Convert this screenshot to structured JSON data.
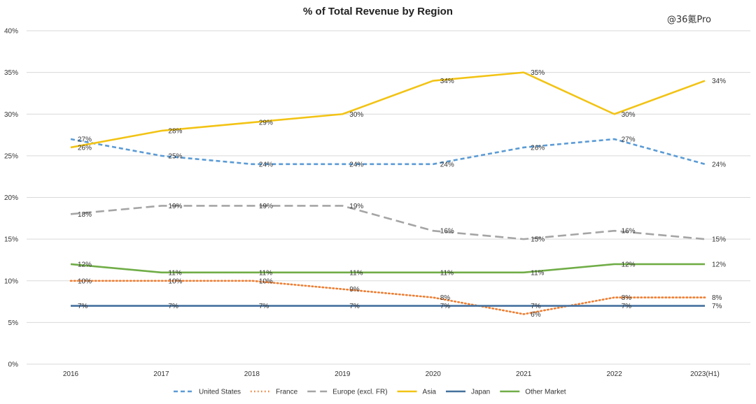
{
  "watermark": "@36氪Pro",
  "chart_data": {
    "type": "line",
    "title": "% of Total Revenue by Region",
    "categories": [
      "2016",
      "2017",
      "2018",
      "2019",
      "2020",
      "2021",
      "2022",
      "2023(H1)"
    ],
    "ylim": [
      0,
      40
    ],
    "yticks": [
      "0%",
      "5%",
      "10%",
      "15%",
      "20%",
      "25%",
      "30%",
      "35%",
      "40%"
    ],
    "grid": true,
    "legend_position": "bottom",
    "series": [
      {
        "name": "United States",
        "values": [
          27,
          25,
          24,
          24,
          24,
          26,
          27,
          24
        ],
        "color": "#5b9bd5",
        "dash": "6,4"
      },
      {
        "name": "France",
        "values": [
          10,
          10,
          10,
          9,
          8,
          6,
          8,
          8
        ],
        "color": "#ed7d31",
        "dash": "1.5,3.5"
      },
      {
        "name": "Europe (excl. FR)",
        "values": [
          18,
          19,
          19,
          19,
          16,
          15,
          16,
          15
        ],
        "color": "#a5a5a5",
        "dash": "12,6"
      },
      {
        "name": "Asia",
        "values": [
          26,
          28,
          29,
          30,
          34,
          35,
          30,
          34
        ],
        "color": "#f2c314",
        "dash": ""
      },
      {
        "name": "Japan",
        "values": [
          7,
          7,
          7,
          7,
          7,
          7,
          7,
          7
        ],
        "color": "#44719e",
        "dash": ""
      },
      {
        "name": "Other Market",
        "values": [
          12,
          11,
          11,
          11,
          11,
          11,
          12,
          12
        ],
        "color": "#70ad47",
        "dash": ""
      }
    ]
  }
}
